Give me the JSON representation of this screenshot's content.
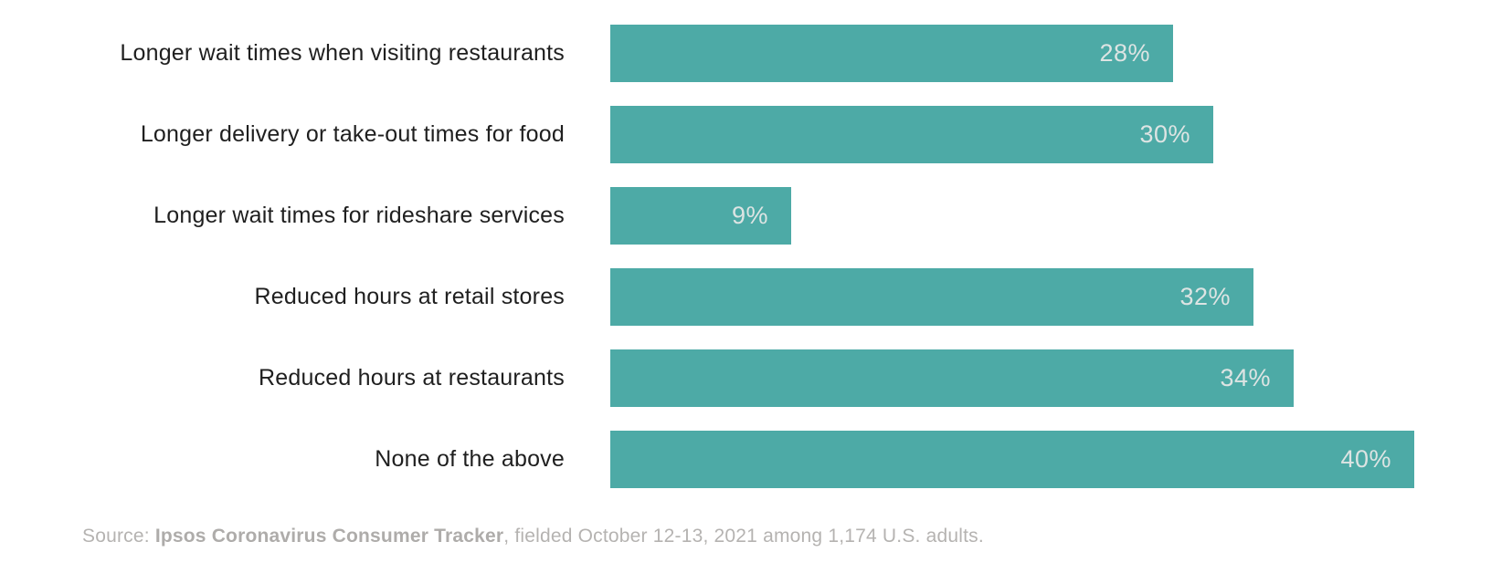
{
  "chart_data": {
    "type": "bar",
    "orientation": "horizontal",
    "title": "",
    "xlabel": "",
    "ylabel": "",
    "xlim": [
      0,
      40
    ],
    "grid": "off",
    "legend": "none",
    "bar_color": "#4daaa6",
    "category_label_color": "#1f1f1f",
    "value_label_color": "#dde4e3",
    "categories": [
      "Longer wait times when visiting restaurants",
      "Longer delivery or take-out times for food",
      "Longer wait times for rideshare services",
      "Reduced hours at retail stores",
      "Reduced hours at restaurants",
      "None of the above"
    ],
    "values": [
      28,
      30,
      9,
      32,
      34,
      40
    ],
    "value_labels": [
      "28%",
      "30%",
      "9%",
      "32%",
      "34%",
      "40%"
    ]
  },
  "source": {
    "prefix": "Source: ",
    "bold": "Ipsos Coronavirus Consumer Tracker",
    "rest": ", fielded October 12-13, 2021 among 1,174 U.S. adults."
  }
}
